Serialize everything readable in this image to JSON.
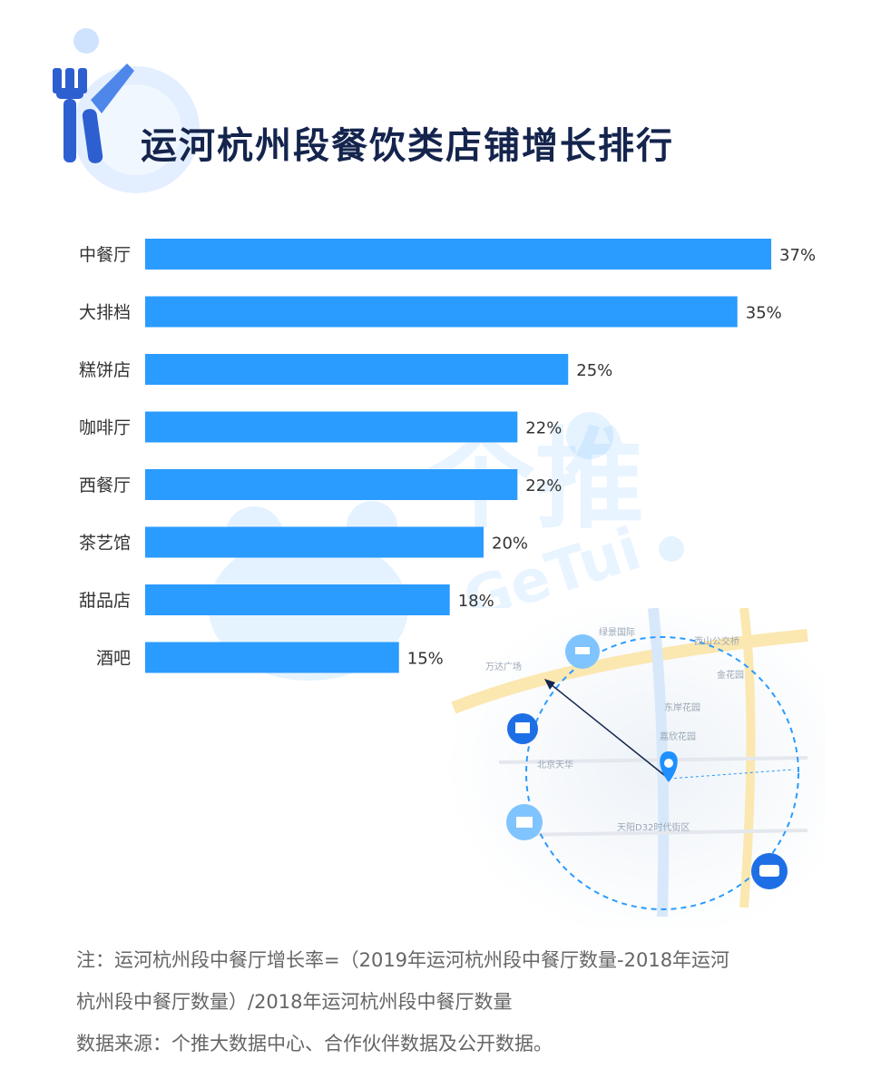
{
  "title": "运河杭州段餐饮类店铺增长排行",
  "colors": {
    "bar": "#2a9bff",
    "title": "#14244d",
    "label": "#333333",
    "note": "#666666"
  },
  "chart_data": {
    "type": "bar",
    "orientation": "horizontal",
    "title": "运河杭州段餐饮类店铺增长排行",
    "categories": [
      "中餐厅",
      "大排档",
      "糕饼店",
      "咖啡厅",
      "西餐厅",
      "茶艺馆",
      "甜品店",
      "酒吧"
    ],
    "values": [
      37,
      35,
      25,
      22,
      22,
      20,
      18,
      15
    ],
    "value_labels": [
      "37%",
      "35%",
      "25%",
      "22%",
      "22%",
      "20%",
      "18%",
      "15%"
    ],
    "unit": "%",
    "xlim": [
      0,
      40
    ],
    "grid": false,
    "legend": "none"
  },
  "watermark": {
    "brand_cn": "个推",
    "brand_en": "GeTui"
  },
  "map": {
    "labels": [
      "绿景国际",
      "西山公交桥",
      "万达广场",
      "东岸花园",
      "金花园",
      "嘉欣花园",
      "北京天华",
      "天阳D32时代街区"
    ]
  },
  "notes": {
    "line1": "注：运河杭州段中餐厅增长率=（2019年运河杭州段中餐厅数量-2018年运河",
    "line2": "杭州段中餐厅数量）/2018年运河杭州段中餐厅数量",
    "line3": "数据来源：个推大数据中心、合作伙伴数据及公开数据。"
  }
}
